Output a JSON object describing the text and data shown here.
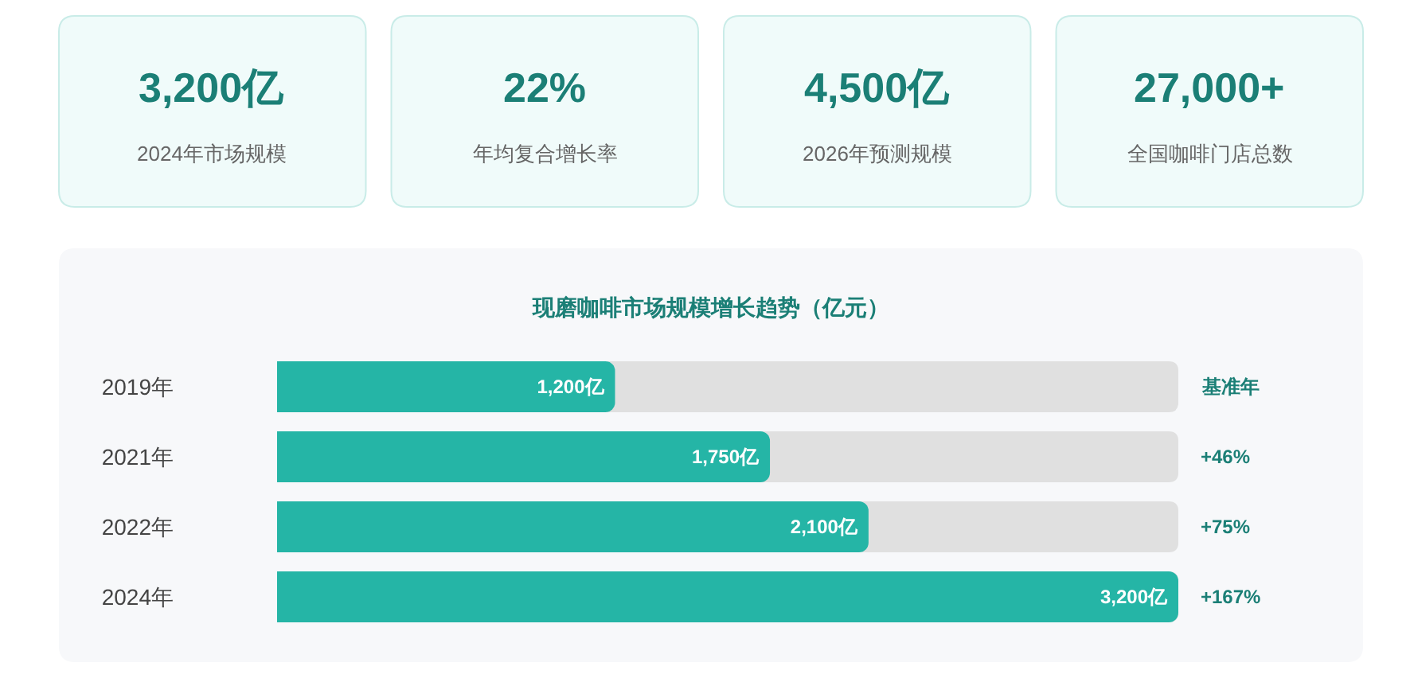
{
  "chart_data": [
    {
      "type": "other",
      "annotations": [
        "3,200亿",
        "2024年市场规模",
        "22%",
        "年均复合增长率",
        "4,500亿",
        "2026年预测规模",
        "27,000+",
        "全国咖啡门店总数"
      ]
    },
    {
      "type": "bar",
      "orientation": "horizontal",
      "title": "现磨咖啡市场规模增长趋势（亿元）",
      "categories": [
        "2019年",
        "2021年",
        "2022年",
        "2024年"
      ],
      "values": [
        1200,
        1750,
        2100,
        3200
      ],
      "value_labels": [
        "1,200亿",
        "1,750亿",
        "2,100亿",
        "3,200亿"
      ],
      "color": "#25b5a6",
      "xlim": [
        0,
        3200
      ],
      "tick_labels": "y",
      "annotations": [
        "基准年",
        "+46%",
        "+75%",
        "+167%"
      ]
    }
  ]
}
